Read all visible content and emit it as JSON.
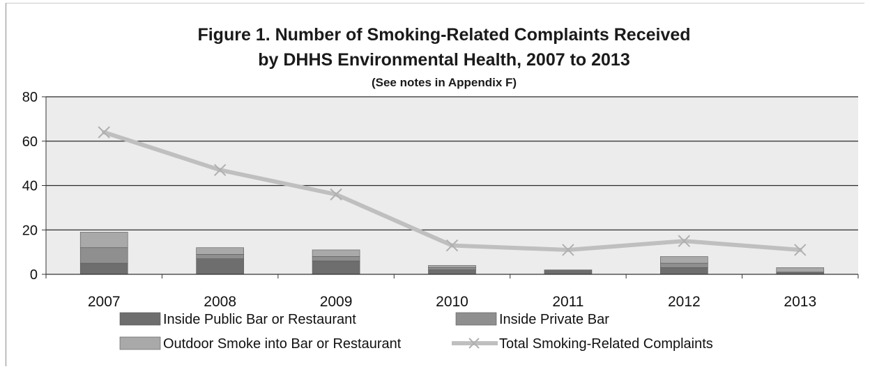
{
  "chart_data": {
    "type": "bar",
    "stacked": true,
    "title": "Figure 1. Number of Smoking-Related Complaints Received",
    "title_line2": "by DHHS Environmental Health, 2007 to 2013",
    "subtitle": "(See notes in Appendix F)",
    "categories": [
      "2007",
      "2008",
      "2009",
      "2010",
      "2011",
      "2012",
      "2013"
    ],
    "ylim": [
      0,
      80
    ],
    "yticks": [
      0,
      20,
      40,
      60,
      80
    ],
    "grid": true,
    "legend_position": "bottom",
    "series": [
      {
        "name": "Inside Public Bar or Restaurant",
        "type": "bar",
        "color": "#6e6e6e",
        "values": [
          5,
          7,
          6,
          2,
          2,
          3,
          1
        ]
      },
      {
        "name": "Inside Private Bar",
        "type": "bar",
        "color": "#8f8f8f",
        "values": [
          7,
          2,
          2,
          1,
          0,
          2,
          0
        ]
      },
      {
        "name": "Outdoor Smoke into Bar or Restaurant",
        "type": "bar",
        "color": "#a9a9a9",
        "values": [
          7,
          3,
          3,
          1,
          0,
          3,
          2
        ]
      },
      {
        "name": "Total Smoking-Related Complaints",
        "type": "line",
        "color": "#bfbfbf",
        "values": [
          64,
          47,
          36,
          13,
          11,
          15,
          11
        ]
      }
    ]
  }
}
